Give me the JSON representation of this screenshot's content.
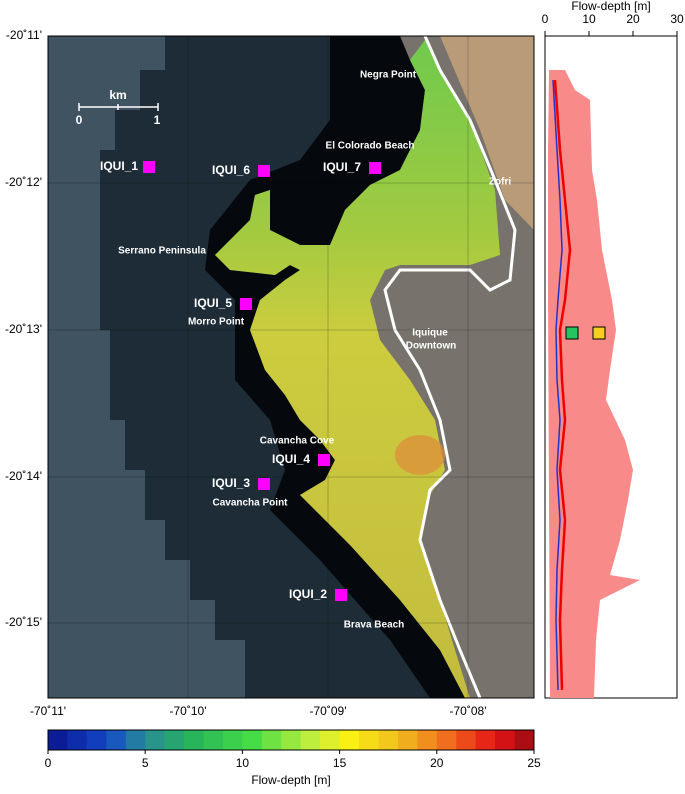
{
  "map": {
    "lat_ticks": [
      "-20˚11'",
      "-20˚12'",
      "-20˚13'",
      "-20˚14'",
      "-20˚15'"
    ],
    "lon_ticks": [
      "-70˚11'",
      "-70˚10'",
      "-70˚09'",
      "-70˚08'"
    ],
    "scale_bar": {
      "unit": "km",
      "start": "0",
      "end": "1"
    },
    "places": [
      "Negra Point",
      "El Colorado Beach",
      "Zofri",
      "Serrano Peninsula",
      "Morro Point",
      "Iquique",
      "Downtown",
      "Cavancha Cove",
      "Cavancha Point",
      "Brava Beach"
    ],
    "stations": [
      "IQUI_1",
      "IQUI_6",
      "IQUI_7",
      "IQUI_5",
      "IQUI_4",
      "IQUI_3",
      "IQUI_2"
    ]
  },
  "profile": {
    "title": "Flow-depth [m]",
    "xticks": [
      0,
      10,
      20,
      30
    ]
  },
  "colorbar": {
    "label": "Flow-depth [m]",
    "ticks": [
      0,
      5,
      10,
      15,
      20,
      25
    ]
  }
}
